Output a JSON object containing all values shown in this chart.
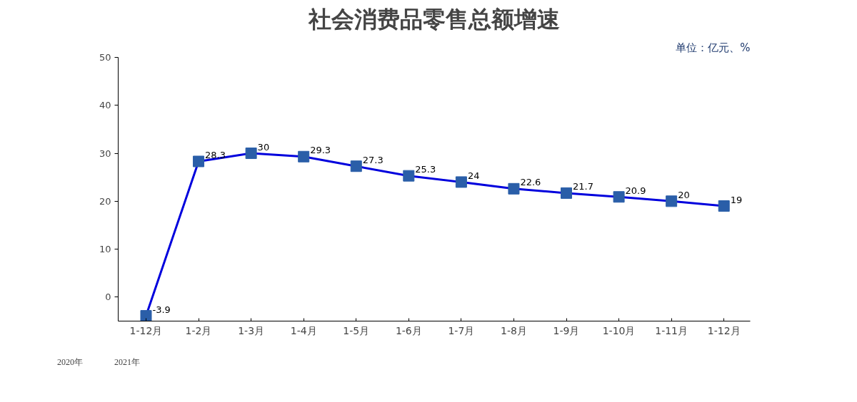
{
  "chart_data": {
    "type": "line",
    "title": "社会消费品零售总额增速",
    "categories": [
      "1-12月",
      "1-2月",
      "1-3月",
      "1-4月",
      "1-5月",
      "1-6月",
      "1-7月",
      "1-8月",
      "1-9月",
      "1-10月",
      "1-11月",
      "1-12月"
    ],
    "series": [
      {
        "color": "#0000dd",
        "values": [
          -3.9,
          28.3,
          30,
          29.3,
          27.3,
          25.3,
          24,
          22.6,
          21.7,
          20.9,
          20,
          19
        ]
      }
    ],
    "annotations": [
      "单位：亿元、%",
      "2020年",
      "2021年"
    ],
    "ylim": [
      -5,
      50
    ],
    "yticks": [
      0,
      10,
      20,
      30,
      40,
      50
    ],
    "grid": false,
    "marker": "square",
    "line_style": "solid",
    "data_labels": true
  }
}
